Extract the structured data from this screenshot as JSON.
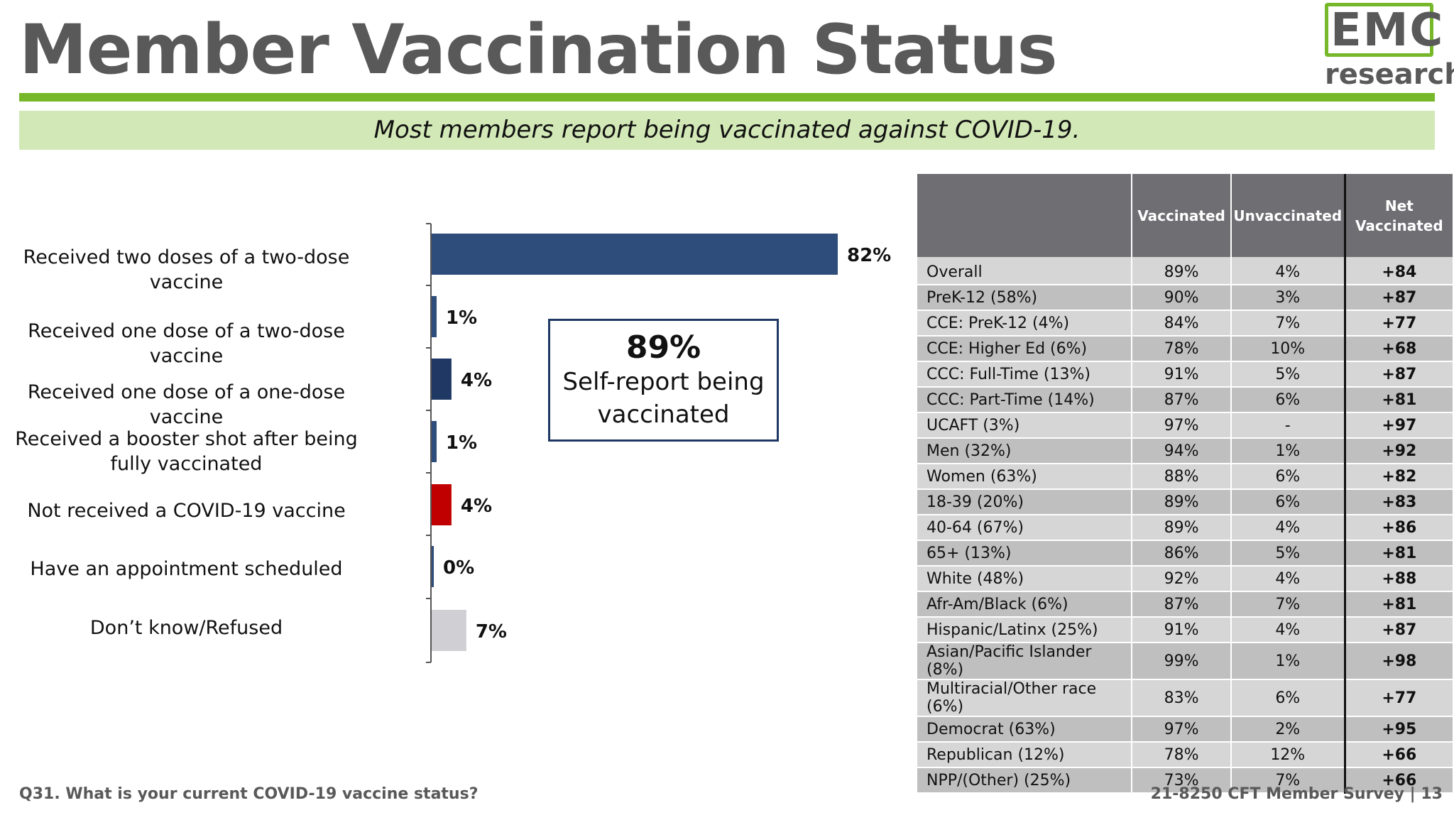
{
  "header": {
    "title": "Member Vaccination Status",
    "subtitle": "Most members report being vaccinated against COVID-19.",
    "logo_top": "EMC",
    "logo_bottom": "research"
  },
  "colors": {
    "accent_green": "#76b82a",
    "subtitle_bg": "#d3e8b7",
    "table_header": "#6e6e73"
  },
  "chart_data": {
    "type": "bar",
    "orientation": "horizontal",
    "categories": [
      "Received two doses of a two-dose vaccine",
      "Received one dose of a two-dose vaccine",
      "Received one dose of a one-dose vaccine",
      "Received a booster shot after being fully vaccinated",
      "Not received a COVID-19 vaccine",
      "Have an appointment scheduled",
      "Don’t know/Refused"
    ],
    "values": [
      82,
      1,
      4,
      1,
      4,
      0,
      7
    ],
    "data_labels": [
      "82%",
      "1%",
      "4%",
      "1%",
      "4%",
      "0%",
      "7%"
    ],
    "bar_colors": [
      "#2e4d7a",
      "#2e4d7a",
      "#1f3864",
      "#2e4d7a",
      "#c00000",
      "#2e4d7a",
      "#d0cfd4"
    ],
    "xlim": [
      0,
      100
    ]
  },
  "callout": {
    "value": "89%",
    "text": "Self-report being vaccinated"
  },
  "table": {
    "headers": [
      "",
      "Vaccinated",
      "Unvaccinated",
      "Net Vaccinated"
    ],
    "rows": [
      [
        "Overall",
        "89%",
        "4%",
        "+84"
      ],
      [
        "PreK-12 (58%)",
        "90%",
        "3%",
        "+87"
      ],
      [
        "CCE: PreK-12 (4%)",
        "84%",
        "7%",
        "+77"
      ],
      [
        "CCE: Higher Ed (6%)",
        "78%",
        "10%",
        "+68"
      ],
      [
        "CCC: Full-Time (13%)",
        "91%",
        "5%",
        "+87"
      ],
      [
        "CCC: Part-Time (14%)",
        "87%",
        "6%",
        "+81"
      ],
      [
        "UCAFT (3%)",
        "97%",
        "-",
        "+97"
      ],
      [
        "Men (32%)",
        "94%",
        "1%",
        "+92"
      ],
      [
        "Women (63%)",
        "88%",
        "6%",
        "+82"
      ],
      [
        "18-39 (20%)",
        "89%",
        "6%",
        "+83"
      ],
      [
        "40-64 (67%)",
        "89%",
        "4%",
        "+86"
      ],
      [
        "65+ (13%)",
        "86%",
        "5%",
        "+81"
      ],
      [
        "White (48%)",
        "92%",
        "4%",
        "+88"
      ],
      [
        "Afr-Am/Black (6%)",
        "87%",
        "7%",
        "+81"
      ],
      [
        "Hispanic/Latinx (25%)",
        "91%",
        "4%",
        "+87"
      ],
      [
        "Asian/Pacific Islander (8%)",
        "99%",
        "1%",
        "+98"
      ],
      [
        "Multiracial/Other race (6%)",
        "83%",
        "6%",
        "+77"
      ],
      [
        "Democrat (63%)",
        "97%",
        "2%",
        "+95"
      ],
      [
        "Republican (12%)",
        "78%",
        "12%",
        "+66"
      ],
      [
        "NPP/(Other) (25%)",
        "73%",
        "7%",
        "+66"
      ]
    ]
  },
  "footer": {
    "question": "Q31. What is your current COVID-19 vaccine status?",
    "survey": "21-8250 CFT Member Survey | 13"
  }
}
